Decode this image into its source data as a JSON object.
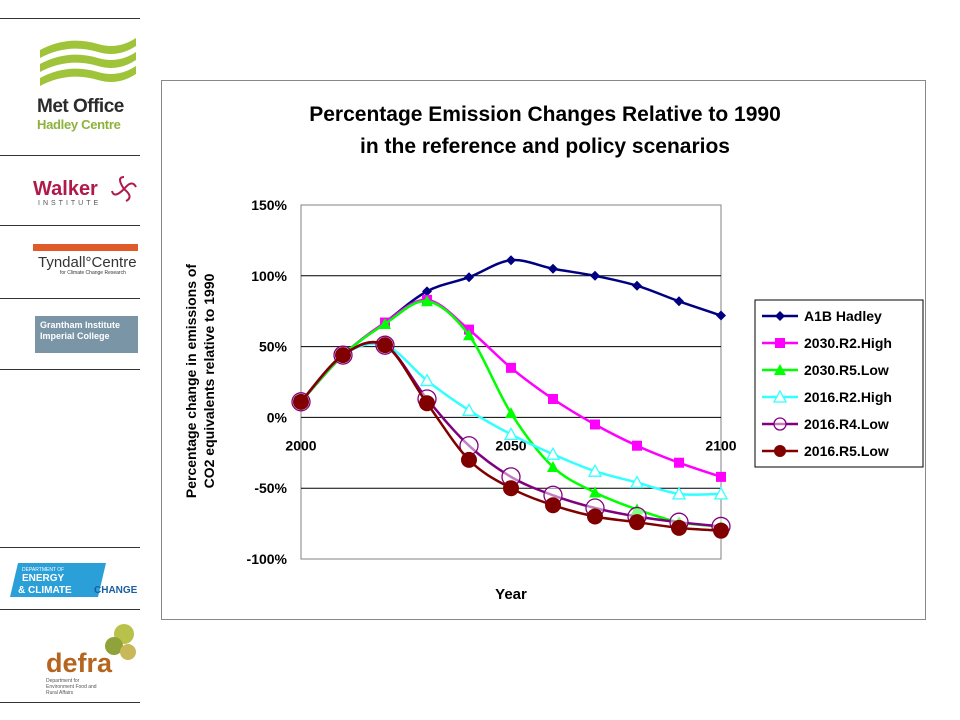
{
  "sidebar": {
    "metoffice": {
      "title": "Met Office",
      "subtitle": "Hadley Centre"
    },
    "walker": {
      "title": "Walker",
      "subtitle": "INSTITUTE"
    },
    "tyndall": {
      "title": "Tyndall°Centre",
      "subtitle": "for Climate Change Research"
    },
    "grantham": {
      "line1": "Grantham Institute",
      "line2": "Imperial College"
    },
    "decc": {
      "line1": "DEPARTMENT OF",
      "line2": "ENERGY",
      "line3": "& CLIMATE",
      "line3b": "CHANGE"
    },
    "defra": {
      "title": "defra",
      "subtitle": "Department for Environment Food and Rural Affairs"
    },
    "colors": {
      "metoffice_green": "#9fc43a",
      "walker": "#b01a4a",
      "tyndall_red": "#e05a2a",
      "grantham": "#7a96a6",
      "decc_blue": "#2a9fd8"
    }
  },
  "chart_data": {
    "type": "line",
    "title_line1": "Percentage Emission Changes Relative to 1990",
    "title_line2": "in the reference and policy scenarios",
    "xlabel": "Year",
    "ylabel_line1": "Percentage change in emissions of",
    "ylabel_line2": "CO2 equivalents relative to 1990",
    "x_ticks": [
      2000,
      2050,
      2100
    ],
    "y_ticks": [
      "150%",
      "100%",
      "50%",
      "0%",
      "-50%",
      "-100%"
    ],
    "ylim": [
      -100,
      150
    ],
    "xlim": [
      2000,
      2100
    ],
    "grid": "horizontal",
    "legend_position": "right",
    "series": [
      {
        "name": "A1B Hadley",
        "color": "#000080",
        "marker": "diamond",
        "x": [
          2000,
          2010,
          2020,
          2030,
          2040,
          2050,
          2060,
          2070,
          2080,
          2090,
          2100
        ],
        "y": [
          11,
          44,
          67,
          89,
          99,
          111,
          105,
          100,
          93,
          82,
          72
        ]
      },
      {
        "name": "2030.R2.High",
        "color": "#ff00ff",
        "marker": "square",
        "x": [
          2000,
          2010,
          2020,
          2030,
          2040,
          2050,
          2060,
          2070,
          2080,
          2090,
          2100
        ],
        "y": [
          11,
          44,
          67,
          83,
          62,
          35,
          13,
          -5,
          -20,
          -32,
          -42
        ]
      },
      {
        "name": "2030.R5.Low",
        "color": "#00ff00",
        "marker": "triangle",
        "x": [
          2000,
          2010,
          2020,
          2030,
          2040,
          2050,
          2060,
          2070,
          2080,
          2090,
          2100
        ],
        "y": [
          11,
          44,
          66,
          82,
          58,
          3,
          -35,
          -53,
          -65,
          -74,
          -77
        ]
      },
      {
        "name": "2016.R2.High",
        "color": "#33ffff",
        "marker": "triangle-open",
        "x": [
          2000,
          2010,
          2020,
          2030,
          2040,
          2050,
          2060,
          2070,
          2080,
          2090,
          2100
        ],
        "y": [
          11,
          44,
          51,
          26,
          5,
          -12,
          -26,
          -38,
          -46,
          -54,
          -54
        ]
      },
      {
        "name": "2016.R4.Low",
        "color": "#800080",
        "marker": "circle-open",
        "x": [
          2000,
          2010,
          2020,
          2030,
          2040,
          2050,
          2060,
          2070,
          2080,
          2090,
          2100
        ],
        "y": [
          11,
          44,
          51,
          13,
          -20,
          -42,
          -55,
          -64,
          -70,
          -74,
          -77
        ]
      },
      {
        "name": "2016.R5.Low",
        "color": "#800000",
        "marker": "circle",
        "x": [
          2000,
          2010,
          2020,
          2030,
          2040,
          2050,
          2060,
          2070,
          2080,
          2090,
          2100
        ],
        "y": [
          11,
          44,
          51,
          10,
          -30,
          -50,
          -62,
          -70,
          -74,
          -78,
          -80
        ]
      }
    ]
  }
}
